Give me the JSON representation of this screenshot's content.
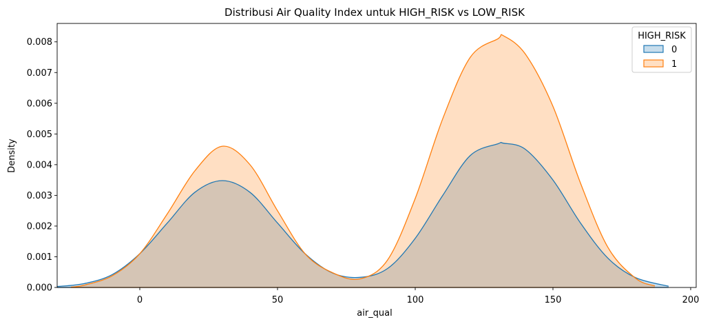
{
  "chart_data": {
    "type": "area",
    "title": "Distribusi Air Quality Index untuk HIGH_RISK vs LOW_RISK",
    "xlabel": "air_qual",
    "ylabel": "Density",
    "xlim": [
      -30,
      202
    ],
    "ylim": [
      0,
      0.0086
    ],
    "xticks": [
      0,
      50,
      100,
      150,
      200
    ],
    "xtick_labels": [
      "0",
      "50",
      "100",
      "150",
      "200"
    ],
    "yticks": [
      0,
      0.001,
      0.002,
      0.003,
      0.004,
      0.005,
      0.006,
      0.007,
      0.008
    ],
    "ytick_labels": [
      "0.000",
      "0.001",
      "0.002",
      "0.003",
      "0.004",
      "0.005",
      "0.006",
      "0.007",
      "0.008"
    ],
    "legend": {
      "title": "HIGH_RISK",
      "position": "top-right"
    },
    "series": [
      {
        "name": "0",
        "color": "#1f77b4",
        "fill": "#1f77b4",
        "x": [
          -30,
          -20,
          -10,
          0,
          10,
          20,
          30,
          40,
          50,
          60,
          70,
          80,
          90,
          100,
          110,
          120,
          130,
          132,
          140,
          150,
          160,
          170,
          180,
          192
        ],
        "y": [
          3e-05,
          0.00013,
          0.00042,
          0.0011,
          0.0021,
          0.0031,
          0.00348,
          0.0031,
          0.0021,
          0.0011,
          0.00047,
          0.00033,
          0.00062,
          0.0016,
          0.003,
          0.0043,
          0.00468,
          0.0047,
          0.0045,
          0.0035,
          0.0021,
          0.00095,
          0.00032,
          4e-05
        ]
      },
      {
        "name": "1",
        "color": "#ff7f0e",
        "fill": "#ff7f0e",
        "x": [
          -25,
          -20,
          -10,
          0,
          10,
          20,
          30,
          40,
          50,
          60,
          70,
          80,
          90,
          100,
          110,
          120,
          130,
          132,
          140,
          150,
          160,
          170,
          180,
          187
        ],
        "y": [
          1e-05,
          8e-05,
          0.00038,
          0.0011,
          0.0024,
          0.0038,
          0.0046,
          0.004,
          0.0025,
          0.0011,
          0.00048,
          0.00028,
          0.0009,
          0.0029,
          0.0055,
          0.0075,
          0.0081,
          0.0082,
          0.0076,
          0.0059,
          0.0034,
          0.0013,
          0.0003,
          5e-05
        ]
      }
    ]
  }
}
